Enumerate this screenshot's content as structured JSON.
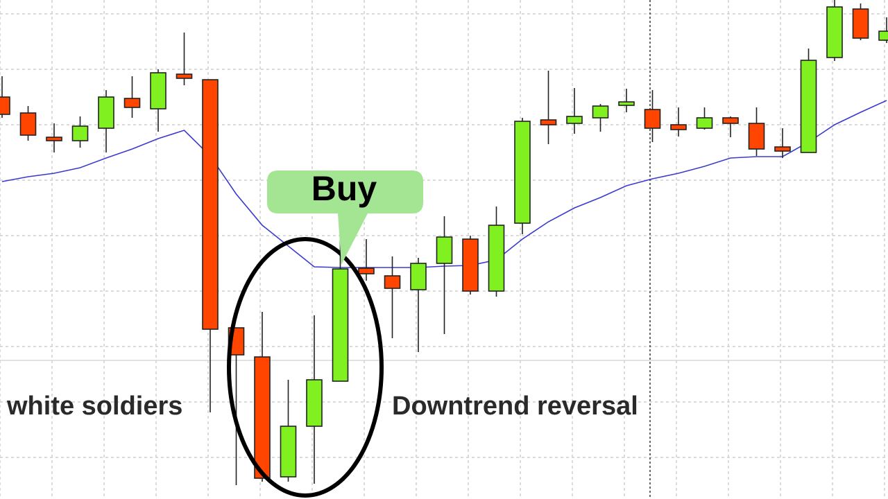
{
  "chart_data": {
    "type": "candlestick",
    "annotations": [
      "white soldiers",
      "Downtrend reversal",
      "Buy"
    ],
    "ylim": [
      0,
      72
    ],
    "grid": true,
    "up_color": "#80f020",
    "down_color": "#ff4500",
    "open": [
      58,
      55.7,
      52.2,
      51.7,
      53.5,
      57.8,
      56.3,
      61.3,
      60.5,
      24.7,
      20.5,
      3.2,
      10.5,
      17,
      33.3,
      32.2,
      30.2,
      34,
      37.5,
      30,
      39.8,
      54.7,
      54.2,
      55,
      56.8,
      56.2,
      54,
      53.5,
      55,
      54.2,
      50.8,
      50,
      63.7,
      70.7,
      66.2
    ],
    "high": [
      61,
      56.7,
      54.2,
      55.2,
      59,
      61,
      62,
      67.3,
      60.5,
      24.7,
      27,
      17.2,
      26.5,
      37.5,
      37.5,
      35,
      34.8,
      40.8,
      38,
      42.2,
      55,
      61.8,
      59.3,
      57,
      59.2,
      59,
      56.5,
      56.5,
      55.2,
      56.5,
      53.5,
      65,
      72,
      71.5,
      69.5
    ],
    "low": [
      55,
      51.7,
      50,
      50.7,
      50,
      55,
      53,
      59.7,
      12.5,
      2,
      2.5,
      2.5,
      2.2,
      17,
      31.5,
      23.2,
      21.2,
      23.8,
      29.5,
      29.2,
      38.2,
      51.2,
      52.7,
      53,
      55.8,
      51.5,
      52.3,
      53.3,
      52.2,
      49.5,
      49.2,
      50,
      63.2,
      66.2,
      65.8
    ],
    "close": [
      55.5,
      52.5,
      51.7,
      53.8,
      58,
      56.5,
      61.5,
      60.7,
      24.5,
      20.8,
      3,
      10.5,
      17.2,
      33.2,
      32.5,
      30.4,
      34,
      37.8,
      30,
      39.5,
      54.5,
      54,
      55.2,
      56.7,
      57.3,
      53.5,
      53.3,
      55,
      54.2,
      50.5,
      50.2,
      63.3,
      71,
      66.5,
      67.5
    ],
    "moving_average": {
      "color": "#3a3ad0",
      "values": [
        45.8,
        46.5,
        47,
        47.8,
        49.2,
        50.5,
        52,
        53.2,
        49.5,
        44,
        39.5,
        36.5,
        33.5,
        33.4,
        33.4,
        33.4,
        33.4,
        33.6,
        33.7,
        34.5,
        37.5,
        40,
        42,
        43.5,
        45.2,
        46.2,
        47,
        48,
        49.2,
        49.4,
        49.4,
        51.5,
        54,
        55.8,
        57.5
      ]
    }
  }
}
